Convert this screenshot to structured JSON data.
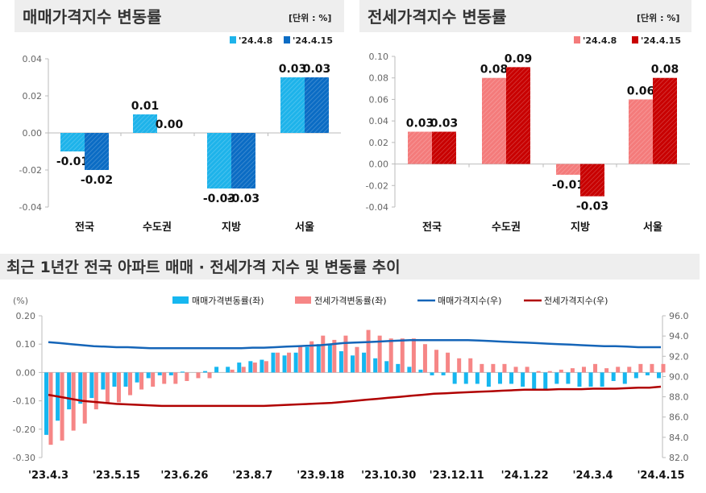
{
  "colors": {
    "sale_prev": "#1EB3EA",
    "sale_curr": "#0B6CC4",
    "jeonse_prev": "#F47B7B",
    "jeonse_curr": "#C80000",
    "sale_change": "#16B7F0",
    "jeonse_change": "#F68686",
    "sale_index": "#1565B8",
    "jeonse_index": "#B00000",
    "header_bg": "#EEEEEE"
  },
  "chart_data": [
    {
      "type": "bar",
      "title": "매매가격지수 변동률",
      "unit": "[단위 : %]",
      "categories": [
        "전국",
        "수도권",
        "지방",
        "서울"
      ],
      "series": [
        {
          "name": "'24.4.8",
          "values": [
            -0.01,
            0.01,
            -0.03,
            0.03
          ],
          "labels": [
            "-0.01",
            "0.01",
            "-0.03",
            "0.03"
          ]
        },
        {
          "name": "'24.4.15",
          "values": [
            -0.02,
            0.0,
            -0.03,
            0.03
          ],
          "labels": [
            "-0.02",
            "0.00",
            "-0.03",
            "0.03"
          ]
        }
      ],
      "ylim": [
        -0.04,
        0.04
      ],
      "yticks": [
        "0.04",
        "0.02",
        "0.00",
        "-0.02",
        "-0.04"
      ],
      "legend": "top-right",
      "grid": false
    },
    {
      "type": "bar",
      "title": "전세가격지수 변동률",
      "unit": "[단위 : %]",
      "categories": [
        "전국",
        "수도권",
        "지방",
        "서울"
      ],
      "series": [
        {
          "name": "'24.4.8",
          "values": [
            0.03,
            0.08,
            -0.01,
            0.06
          ],
          "labels": [
            "0.03",
            "0.08",
            "-0.01",
            "0.06"
          ]
        },
        {
          "name": "'24.4.15",
          "values": [
            0.03,
            0.09,
            -0.03,
            0.08
          ],
          "labels": [
            "0.03",
            "0.09",
            "-0.03",
            "0.08"
          ]
        }
      ],
      "ylim": [
        -0.04,
        0.1
      ],
      "yticks": [
        "0.10",
        "0.08",
        "0.06",
        "0.04",
        "0.02",
        "0.00",
        "-0.02",
        "-0.04"
      ],
      "legend": "top-right",
      "grid": false
    },
    {
      "type": "bar+line",
      "title": "최근 1년간 전국 아파트 매매 · 전세가격 지수 및 변동률 추이",
      "ylabel_left": "(%)",
      "ylim_left": [
        -0.3,
        0.2
      ],
      "yticks_left": [
        "0.20",
        "0.10",
        "0.00",
        "-0.10",
        "-0.20",
        "-0.30"
      ],
      "ylim_right": [
        82.0,
        96.0
      ],
      "yticks_right": [
        "96.0",
        "94.0",
        "92.0",
        "90.0",
        "88.0",
        "86.0",
        "84.0",
        "82.0"
      ],
      "xtick_labels": [
        "'23.4.3",
        "'23.5.15",
        "'23.6.26",
        "'23.8.7",
        "'23.9.18",
        "'23.10.30",
        "'23.12.11",
        "'24.1.22",
        "'24.3.4",
        "'24.4.15"
      ],
      "legend": "top",
      "grid": false,
      "bar_series": [
        {
          "name": "매매가격변동률(좌)",
          "axis": "left",
          "values": [
            -0.22,
            -0.17,
            -0.13,
            -0.11,
            -0.09,
            -0.06,
            -0.05,
            -0.05,
            -0.035,
            -0.02,
            -0.01,
            -0.01,
            0.003,
            0.0,
            0.005,
            0.02,
            0.02,
            0.035,
            0.04,
            0.045,
            0.07,
            0.06,
            0.07,
            0.09,
            0.1,
            0.1,
            0.075,
            0.06,
            0.07,
            0.05,
            0.04,
            0.03,
            0.02,
            0.01,
            -0.01,
            -0.01,
            -0.04,
            -0.04,
            -0.04,
            -0.05,
            -0.04,
            -0.04,
            -0.05,
            -0.06,
            -0.06,
            -0.04,
            -0.04,
            -0.05,
            -0.05,
            -0.05,
            -0.03,
            -0.04,
            -0.02,
            -0.01,
            -0.02
          ]
        },
        {
          "name": "전세가격변동률(좌)",
          "axis": "left",
          "values": [
            -0.255,
            -0.24,
            -0.205,
            -0.18,
            -0.13,
            -0.11,
            -0.105,
            -0.08,
            -0.06,
            -0.05,
            -0.04,
            -0.04,
            -0.03,
            -0.02,
            -0.02,
            0.0,
            0.01,
            0.02,
            0.035,
            0.04,
            0.07,
            0.07,
            0.095,
            0.11,
            0.13,
            0.115,
            0.13,
            0.09,
            0.15,
            0.13,
            0.12,
            0.12,
            0.12,
            0.1,
            0.08,
            0.07,
            0.05,
            0.05,
            0.03,
            0.03,
            0.03,
            0.02,
            0.02,
            0.005,
            0.005,
            0.01,
            0.015,
            0.02,
            0.03,
            0.015,
            0.02,
            0.02,
            0.03,
            0.03,
            0.03
          ]
        }
      ],
      "line_series": [
        {
          "name": "매매가격지수(우)",
          "axis": "right",
          "values": [
            93.4,
            93.3,
            93.2,
            93.1,
            93.0,
            92.95,
            92.9,
            92.9,
            92.85,
            92.8,
            92.8,
            92.8,
            92.8,
            92.8,
            92.8,
            92.8,
            92.8,
            92.8,
            92.85,
            92.85,
            92.9,
            92.95,
            93.0,
            93.05,
            93.1,
            93.2,
            93.3,
            93.35,
            93.4,
            93.45,
            93.5,
            93.55,
            93.6,
            93.6,
            93.6,
            93.6,
            93.6,
            93.6,
            93.55,
            93.5,
            93.45,
            93.4,
            93.35,
            93.3,
            93.25,
            93.2,
            93.15,
            93.1,
            93.05,
            93.0,
            93.0,
            92.95,
            92.9,
            92.9,
            92.9
          ]
        },
        {
          "name": "전세가격지수(우)",
          "axis": "right",
          "values": [
            88.2,
            88.0,
            87.8,
            87.6,
            87.5,
            87.4,
            87.3,
            87.25,
            87.2,
            87.15,
            87.1,
            87.1,
            87.1,
            87.1,
            87.1,
            87.1,
            87.1,
            87.1,
            87.1,
            87.1,
            87.15,
            87.2,
            87.25,
            87.3,
            87.35,
            87.4,
            87.5,
            87.6,
            87.7,
            87.8,
            87.9,
            88.0,
            88.1,
            88.2,
            88.3,
            88.35,
            88.4,
            88.45,
            88.5,
            88.55,
            88.6,
            88.65,
            88.7,
            88.7,
            88.7,
            88.75,
            88.75,
            88.75,
            88.8,
            88.8,
            88.8,
            88.85,
            88.9,
            88.9,
            89.0
          ]
        }
      ]
    }
  ]
}
